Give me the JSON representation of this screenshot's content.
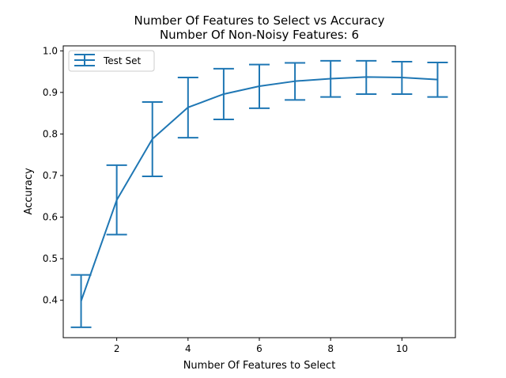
{
  "chart_data": {
    "type": "line",
    "title": "Number Of Features to Select vs Accuracy",
    "subtitle": "Number Of Non-Noisy Features: 6",
    "xlabel": "Number Of Features to Select",
    "ylabel": "Accuracy",
    "xlim": [
      0.5,
      11.5
    ],
    "ylim": [
      0.31,
      1.012
    ],
    "xticks": [
      2,
      4,
      6,
      8,
      10
    ],
    "yticks": [
      0.4,
      0.5,
      0.6,
      0.7,
      0.8,
      0.9,
      1.0
    ],
    "xtick_labels": [
      "2",
      "4",
      "6",
      "8",
      "10"
    ],
    "ytick_labels": [
      "0.4",
      "0.5",
      "0.6",
      "0.7",
      "0.8",
      "0.9",
      "1.0"
    ],
    "grid": false,
    "legend_position": "top-left",
    "series": [
      {
        "name": "Test Set",
        "color": "#1f77b4",
        "x": [
          1,
          2,
          3,
          4,
          5,
          6,
          7,
          8,
          9,
          10,
          11
        ],
        "y": [
          0.398,
          0.641,
          0.788,
          0.864,
          0.896,
          0.915,
          0.927,
          0.933,
          0.937,
          0.936,
          0.931
        ],
        "yerr_lower": [
          0.335,
          0.558,
          0.698,
          0.791,
          0.835,
          0.862,
          0.882,
          0.889,
          0.896,
          0.896,
          0.889
        ],
        "yerr_upper": [
          0.461,
          0.725,
          0.877,
          0.936,
          0.957,
          0.967,
          0.971,
          0.976,
          0.976,
          0.974,
          0.972
        ]
      }
    ]
  }
}
